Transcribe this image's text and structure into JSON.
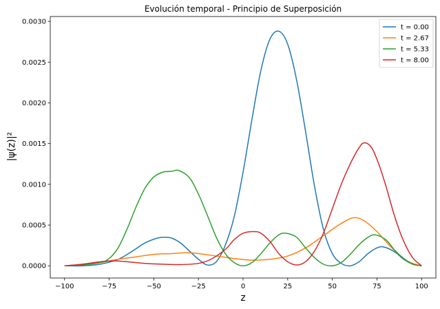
{
  "chart_data": {
    "type": "line",
    "title": "Evolución temporal - Principio de Superposición",
    "xlabel": "z",
    "ylabel": "|ψ(z)|²",
    "xlim": [
      -108,
      108
    ],
    "ylim": [
      -0.00015,
      0.00306
    ],
    "xticks": [
      -100,
      -75,
      -50,
      -25,
      0,
      25,
      50,
      75,
      100
    ],
    "xtick_labels": [
      "−100",
      "−75",
      "−50",
      "−25",
      "0",
      "25",
      "50",
      "75",
      "100"
    ],
    "yticks": [
      0.0,
      0.0005,
      0.001,
      0.0015,
      0.002,
      0.0025,
      0.003
    ],
    "ytick_labels": [
      "0.0000",
      "0.0005",
      "0.0010",
      "0.0015",
      "0.0020",
      "0.0025",
      "0.0030"
    ],
    "grid": false,
    "legend_position": "top-right",
    "series": [
      {
        "name": "t = 0.00",
        "color": "#1f77b4",
        "points": [
          [
            -100,
            0.0
          ],
          [
            -90,
            0.0
          ],
          [
            -80,
            2e-05
          ],
          [
            -70,
            8e-05
          ],
          [
            -62,
            0.00018
          ],
          [
            -55,
            0.00028
          ],
          [
            -48,
            0.00034
          ],
          [
            -44,
            0.00035
          ],
          [
            -40,
            0.00034
          ],
          [
            -35,
            0.00028
          ],
          [
            -30,
            0.00018
          ],
          [
            -25,
            8e-05
          ],
          [
            -20,
            1e-05
          ],
          [
            -15,
            5e-05
          ],
          [
            -10,
            0.00025
          ],
          [
            -5,
            0.0006
          ],
          [
            0,
            0.00115
          ],
          [
            5,
            0.0018
          ],
          [
            10,
            0.0024
          ],
          [
            15,
            0.00278
          ],
          [
            20,
            0.00288
          ],
          [
            25,
            0.00272
          ],
          [
            30,
            0.00228
          ],
          [
            35,
            0.00165
          ],
          [
            40,
            0.00098
          ],
          [
            45,
            0.00045
          ],
          [
            50,
            0.00015
          ],
          [
            55,
            3e-05
          ],
          [
            60,
            0.0
          ],
          [
            65,
            5e-05
          ],
          [
            70,
            0.00015
          ],
          [
            75,
            0.00022
          ],
          [
            79,
            0.00023
          ],
          [
            85,
            0.00017
          ],
          [
            90,
            8e-05
          ],
          [
            95,
            2e-05
          ],
          [
            100,
            0.0
          ]
        ]
      },
      {
        "name": "t = 2.67",
        "color": "#ff7f0e",
        "points": [
          [
            -100,
            0.0
          ],
          [
            -90,
            1.5e-05
          ],
          [
            -80,
            4e-05
          ],
          [
            -70,
            8e-05
          ],
          [
            -60,
            0.00011
          ],
          [
            -50,
            0.00014
          ],
          [
            -40,
            0.00015
          ],
          [
            -32,
            0.00016
          ],
          [
            -25,
            0.00015
          ],
          [
            -15,
            0.00012
          ],
          [
            -5,
            9e-05
          ],
          [
            5,
            7e-05
          ],
          [
            15,
            8e-05
          ],
          [
            25,
            0.00012
          ],
          [
            35,
            0.00022
          ],
          [
            45,
            0.00037
          ],
          [
            55,
            0.00052
          ],
          [
            62,
            0.00059
          ],
          [
            68,
            0.00055
          ],
          [
            75,
            0.00042
          ],
          [
            82,
            0.00025
          ],
          [
            90,
            9e-05
          ],
          [
            95,
            3e-05
          ],
          [
            100,
            0.0
          ]
        ]
      },
      {
        "name": "t = 5.33",
        "color": "#2ca02c",
        "points": [
          [
            -100,
            0.0
          ],
          [
            -90,
            1e-05
          ],
          [
            -80,
            4e-05
          ],
          [
            -75,
            9e-05
          ],
          [
            -70,
            0.00022
          ],
          [
            -65,
            0.00045
          ],
          [
            -60,
            0.00072
          ],
          [
            -55,
            0.00095
          ],
          [
            -50,
            0.00109
          ],
          [
            -45,
            0.00115
          ],
          [
            -40,
            0.00116
          ],
          [
            -36,
            0.00117
          ],
          [
            -30,
            0.00108
          ],
          [
            -25,
            0.00088
          ],
          [
            -20,
            0.00062
          ],
          [
            -15,
            0.00035
          ],
          [
            -10,
            0.00015
          ],
          [
            -5,
            4e-05
          ],
          [
            0,
            0.0
          ],
          [
            5,
            4e-05
          ],
          [
            10,
            0.00015
          ],
          [
            15,
            0.00028
          ],
          [
            20,
            0.00038
          ],
          [
            24,
            0.0004
          ],
          [
            30,
            0.00035
          ],
          [
            35,
            0.00022
          ],
          [
            40,
            0.0001
          ],
          [
            45,
            2e-05
          ],
          [
            50,
            0.0
          ],
          [
            55,
            4e-05
          ],
          [
            60,
            0.00014
          ],
          [
            65,
            0.00026
          ],
          [
            70,
            0.00035
          ],
          [
            74,
            0.00038
          ],
          [
            80,
            0.00032
          ],
          [
            85,
            0.00019
          ],
          [
            90,
            9e-05
          ],
          [
            95,
            2e-05
          ],
          [
            100,
            0.0
          ]
        ]
      },
      {
        "name": "t = 8.00",
        "color": "#d62728",
        "points": [
          [
            -100,
            0.0
          ],
          [
            -90,
            2e-05
          ],
          [
            -80,
            5e-05
          ],
          [
            -72,
            6e-05
          ],
          [
            -65,
            5e-05
          ],
          [
            -55,
            3e-05
          ],
          [
            -45,
            2e-05
          ],
          [
            -35,
            1.5e-05
          ],
          [
            -25,
            3e-05
          ],
          [
            -18,
            8e-05
          ],
          [
            -10,
            0.0002
          ],
          [
            -5,
            0.00032
          ],
          [
            0,
            0.0004
          ],
          [
            6,
            0.00042
          ],
          [
            10,
            0.0004
          ],
          [
            15,
            0.0003
          ],
          [
            20,
            0.00015
          ],
          [
            25,
            5e-05
          ],
          [
            30,
            1e-05
          ],
          [
            35,
            5e-05
          ],
          [
            40,
            0.00018
          ],
          [
            45,
            0.0004
          ],
          [
            50,
            0.0007
          ],
          [
            55,
            0.001
          ],
          [
            60,
            0.00125
          ],
          [
            65,
            0.00145
          ],
          [
            68,
            0.00151
          ],
          [
            72,
            0.00145
          ],
          [
            76,
            0.00125
          ],
          [
            80,
            0.00098
          ],
          [
            85,
            0.0006
          ],
          [
            90,
            0.0003
          ],
          [
            95,
            0.0001
          ],
          [
            100,
            0.0
          ]
        ]
      }
    ]
  }
}
